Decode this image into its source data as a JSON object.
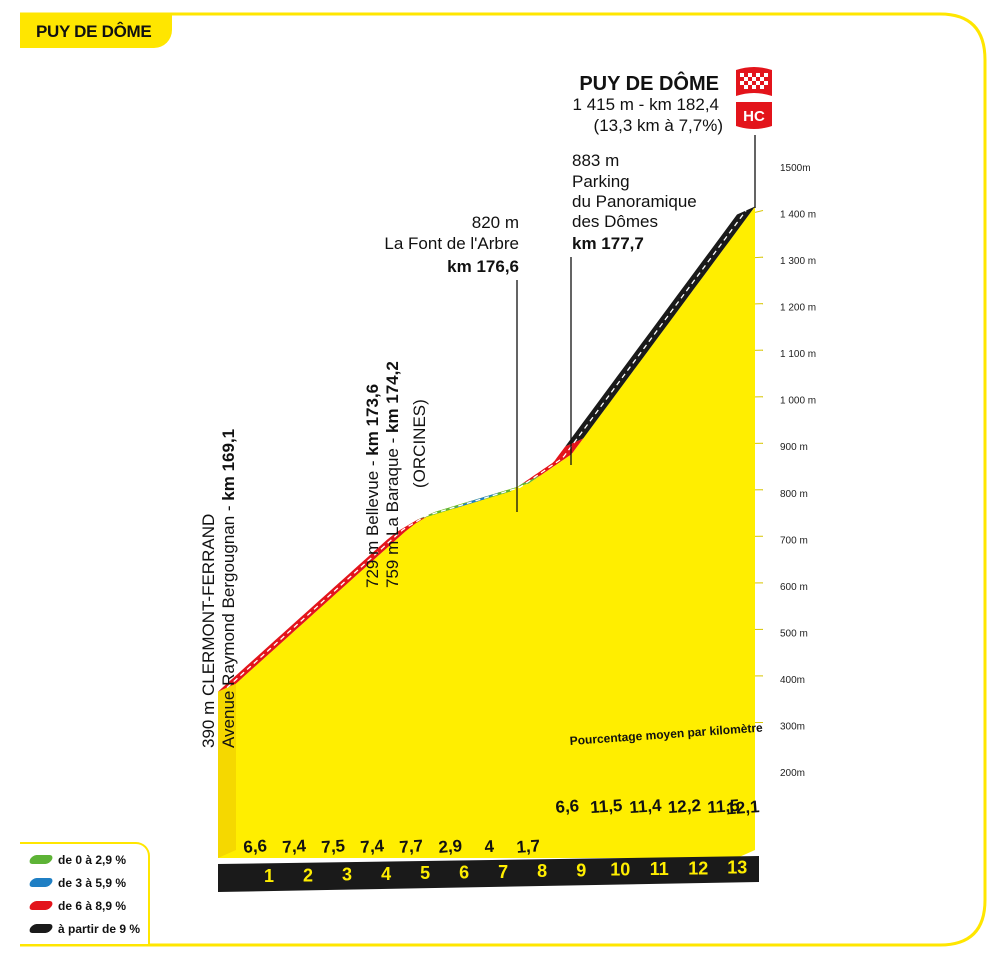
{
  "header": {
    "title": "PUY DE DÔME"
  },
  "colors": {
    "yellow": "#ffee00",
    "frame": "#ffe600",
    "black_band": "#1a1a1a",
    "green": "#5db336",
    "blue": "#1f7fc4",
    "red": "#e3141b",
    "black": "#1a1a1a"
  },
  "legend": {
    "items": [
      {
        "label": "de 0 à 2,9 %",
        "color": "#5db336"
      },
      {
        "label": "de 3 à 5,9 %",
        "color": "#1f7fc4"
      },
      {
        "label": "de 6 à 8,9 %",
        "color": "#e3141b"
      },
      {
        "label": "à partir de 9 %",
        "color": "#1a1a1a"
      }
    ]
  },
  "summit": {
    "name": "PUY DE DÔME",
    "line1": "1 415 m - km 182,4",
    "line2": "(13,3 km à 7,7%)",
    "category": "HC"
  },
  "annotations": {
    "start_l1": "390 m CLERMONT-FERRAND",
    "start_l2": "Avenue Raymond Bergougnan - ",
    "start_km": "km 169,1",
    "bellevue_l1": "729 m Bellevue - ",
    "bellevue_km": "km 173,6",
    "baraque_l1": "759 m La Baraque - ",
    "baraque_km": "km 174,2",
    "orcines": "(ORCINES)",
    "font_alt": "820 m",
    "font_name": "La Font de l'Arbre",
    "font_km": "km 176,6",
    "parking_alt": "883 m",
    "parking_l1": "Parking",
    "parking_l2": "du Panoramique",
    "parking_l3": "des Dômes",
    "parking_km": "km 177,7",
    "avg_label": "Pourcentage moyen par kilomètre"
  },
  "chart_data": {
    "type": "area",
    "title": "PUY DE DÔME",
    "xlabel": "",
    "ylabel": "",
    "x_unit": "km",
    "ylim": [
      200,
      1500
    ],
    "y_ticks": [
      "200m",
      "300m",
      "400m",
      "500 m",
      "600 m",
      "700 m",
      "800 m",
      "900 m",
      "1 000 m",
      "1 100 m",
      "1 200 m",
      "1 300 m",
      "1 400 m",
      "1500m"
    ],
    "y_tick_values": [
      200,
      300,
      400,
      500,
      600,
      700,
      800,
      900,
      1000,
      1100,
      1200,
      1300,
      1400,
      1500
    ],
    "km_labels": [
      "1",
      "2",
      "3",
      "4",
      "5",
      "6",
      "7",
      "8",
      "9",
      "10",
      "11",
      "12",
      "13"
    ],
    "km_avg_percent": [
      "6,6",
      "7,4",
      "7,5",
      "7,4",
      "7,7",
      "2,9",
      "4",
      "1,7",
      "6,6",
      "11,5",
      "11,4",
      "12,2",
      "11,5",
      "12,1"
    ],
    "profile": [
      {
        "km": 0.0,
        "alt": 390
      },
      {
        "km": 4.5,
        "alt": 729
      },
      {
        "km": 5.1,
        "alt": 759
      },
      {
        "km": 6.0,
        "alt": 782
      },
      {
        "km": 7.5,
        "alt": 820
      },
      {
        "km": 8.6,
        "alt": 883
      },
      {
        "km": 13.3,
        "alt": 1415
      }
    ],
    "segments": [
      {
        "from_km": 0.0,
        "to_km": 5.1,
        "gradient_class": "de 6 à 8,9 %"
      },
      {
        "from_km": 5.1,
        "to_km": 6.0,
        "gradient_class": "de 0 à 2,9 %"
      },
      {
        "from_km": 6.0,
        "to_km": 6.8,
        "gradient_class": "de 3 à 5,9 %"
      },
      {
        "from_km": 6.8,
        "to_km": 7.8,
        "gradient_class": "de 0 à 2,9 %"
      },
      {
        "from_km": 7.8,
        "to_km": 8.9,
        "gradient_class": "de 6 à 8,9 %"
      },
      {
        "from_km": 8.9,
        "to_km": 13.3,
        "gradient_class": "à partir de 9 %"
      }
    ]
  }
}
